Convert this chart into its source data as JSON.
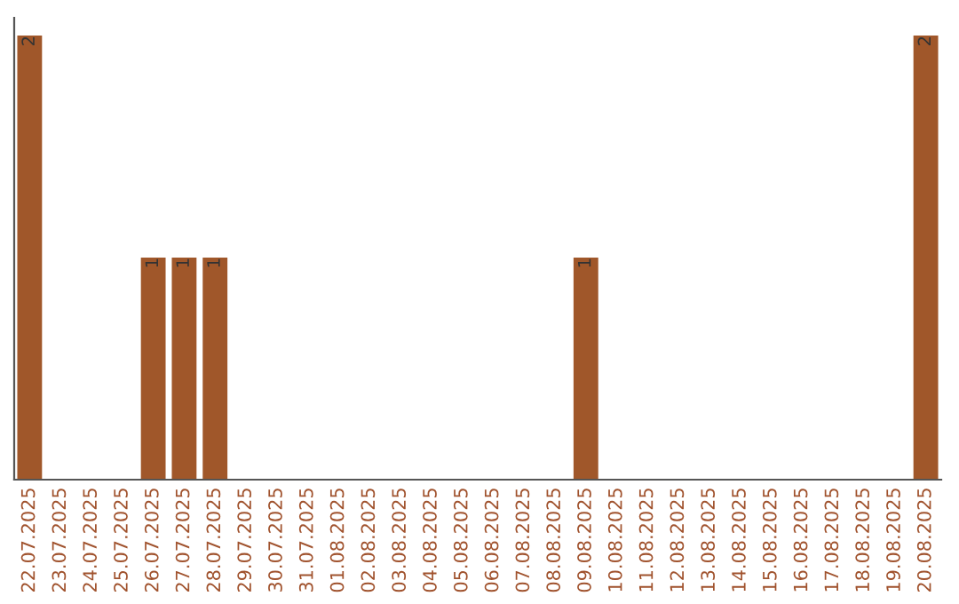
{
  "chart_data": {
    "type": "bar",
    "categories": [
      "22.07.2025",
      "23.07.2025",
      "24.07.2025",
      "25.07.2025",
      "26.07.2025",
      "27.07.2025",
      "28.07.2025",
      "29.07.2025",
      "30.07.2025",
      "31.07.2025",
      "01.08.2025",
      "02.08.2025",
      "03.08.2025",
      "04.08.2025",
      "05.08.2025",
      "06.08.2025",
      "07.08.2025",
      "08.08.2025",
      "09.08.2025",
      "10.08.2025",
      "11.08.2025",
      "12.08.2025",
      "13.08.2025",
      "14.08.2025",
      "15.08.2025",
      "16.08.2025",
      "17.08.2025",
      "18.08.2025",
      "19.08.2025",
      "20.08.2025"
    ],
    "values": [
      2,
      0,
      0,
      0,
      1,
      1,
      1,
      0,
      0,
      0,
      0,
      0,
      0,
      0,
      0,
      0,
      0,
      0,
      1,
      0,
      0,
      0,
      0,
      0,
      0,
      0,
      0,
      0,
      0,
      2
    ],
    "value_labels": [
      "2",
      null,
      null,
      null,
      "1",
      "1",
      "1",
      null,
      null,
      null,
      null,
      null,
      null,
      null,
      null,
      null,
      null,
      null,
      "1",
      null,
      null,
      null,
      null,
      null,
      null,
      null,
      null,
      null,
      null,
      "2"
    ],
    "color": "#a0572a",
    "tick_labels": "x",
    "grid": false,
    "legend": false
  }
}
